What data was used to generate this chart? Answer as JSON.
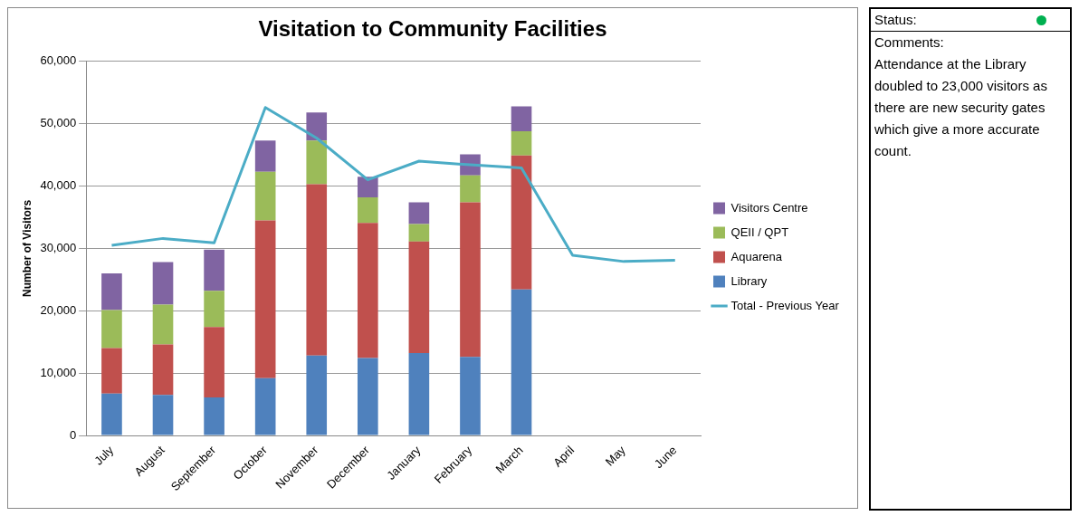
{
  "chart_data": {
    "type": "bar",
    "title": "Visitation to Community Facilities",
    "ylabel": "Number of Visitors",
    "categories": [
      "July",
      "August",
      "September",
      "October",
      "November",
      "December",
      "January",
      "February",
      "March",
      "April",
      "May",
      "June"
    ],
    "stacked": true,
    "series": [
      {
        "name": "Library",
        "color": "#4f81bd",
        "values": [
          6700,
          6500,
          6100,
          9200,
          12800,
          12400,
          13200,
          12600,
          23400,
          null,
          null,
          null
        ]
      },
      {
        "name": "Aquarena",
        "color": "#c0504d",
        "values": [
          7300,
          8100,
          11300,
          25300,
          27500,
          21700,
          17900,
          24800,
          21500,
          null,
          null,
          null
        ]
      },
      {
        "name": "QEII / QPT",
        "color": "#9bbb59",
        "values": [
          6100,
          6400,
          5800,
          7800,
          7000,
          4100,
          2800,
          4300,
          3900,
          null,
          null,
          null
        ]
      },
      {
        "name": "Visitors Centre",
        "color": "#8064a2",
        "values": [
          5900,
          6800,
          6600,
          5000,
          4500,
          3300,
          3500,
          3400,
          4000,
          null,
          null,
          null
        ]
      },
      {
        "name": "Total - Previous Year",
        "type": "line",
        "color": "#4bacc6",
        "values": [
          30500,
          31600,
          30900,
          52600,
          47700,
          41000,
          44000,
          43400,
          42900,
          28900,
          27900,
          28100
        ]
      }
    ],
    "ylim": [
      0,
      60000
    ],
    "yticks": [
      {
        "value": 0,
        "label": "0"
      },
      {
        "value": 10000,
        "label": "10,000"
      },
      {
        "value": 20000,
        "label": "20,000"
      },
      {
        "value": 30000,
        "label": "30,000"
      },
      {
        "value": 40000,
        "label": "40,000"
      },
      {
        "value": 50000,
        "label": "50,000"
      },
      {
        "value": 60000,
        "label": "60,000"
      }
    ],
    "grid": "y",
    "legend": "right",
    "marker": "none",
    "annotations": [
      "Status:",
      "Comments:",
      "Attendance at the Library doubled to 23,000 visitors as there are new security gates which give a more accurate count."
    ]
  }
}
